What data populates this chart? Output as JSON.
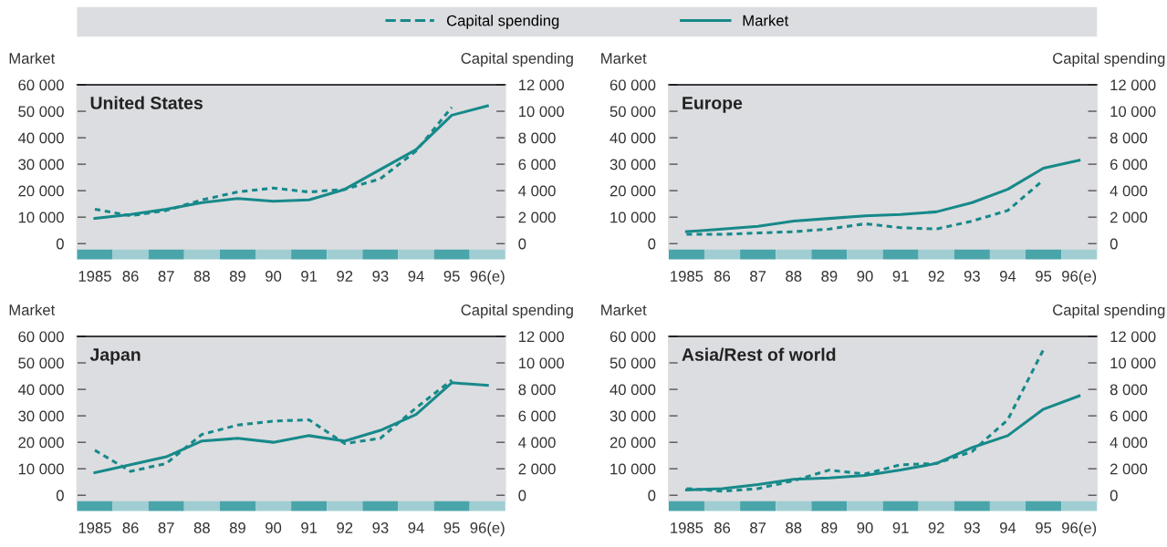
{
  "chart_data": [
    {
      "type": "line",
      "title": "United States",
      "ylabel": "Market",
      "y2label": "Capital spending",
      "legend": "top",
      "grid": false,
      "marker": "none",
      "categories": [
        "1985",
        "86",
        "87",
        "88",
        "89",
        "90",
        "91",
        "92",
        "93",
        "94",
        "95",
        "96(e)"
      ],
      "ylim": [
        -2000,
        60000
      ],
      "yticks": [
        {
          "value": 0,
          "label": "0"
        },
        {
          "value": 10000,
          "label": "10 000"
        },
        {
          "value": 20000,
          "label": "20 000"
        },
        {
          "value": 30000,
          "label": "30 000"
        },
        {
          "value": 40000,
          "label": "40 000"
        },
        {
          "value": 50000,
          "label": "50 000"
        },
        {
          "value": 60000,
          "label": "60 000"
        }
      ],
      "y2lim": [
        -400,
        12000
      ],
      "y2ticks": [
        {
          "value": 0,
          "label": "0"
        },
        {
          "value": 2000,
          "label": "2 000"
        },
        {
          "value": 4000,
          "label": "4 000"
        },
        {
          "value": 6000,
          "label": "6 000"
        },
        {
          "value": 8000,
          "label": "8 000"
        },
        {
          "value": 10000,
          "label": "10 000"
        },
        {
          "value": 12000,
          "label": "12 000"
        }
      ],
      "series": [
        {
          "name": "Capital spending",
          "color": "#17898a",
          "axis": "y2",
          "line_style": "dotted",
          "values": [
            2600,
            2100,
            2500,
            3300,
            3900,
            4200,
            3900,
            4100,
            4900,
            7000,
            10300,
            null
          ]
        },
        {
          "name": "Market",
          "color": "#17898a",
          "line_style": "solid",
          "values": [
            9500,
            11000,
            13000,
            15500,
            17000,
            16000,
            16500,
            20500,
            28000,
            35500,
            48500,
            52000
          ]
        }
      ]
    },
    {
      "type": "line",
      "title": "Europe",
      "ylabel": "Market",
      "y2label": "Capital spending",
      "grid": false,
      "marker": "none",
      "categories": [
        "1985",
        "86",
        "87",
        "88",
        "89",
        "90",
        "91",
        "92",
        "93",
        "94",
        "95",
        "96(e)"
      ],
      "ylim": [
        -2000,
        60000
      ],
      "yticks": [
        {
          "value": 0,
          "label": "0"
        },
        {
          "value": 10000,
          "label": "10 000"
        },
        {
          "value": 20000,
          "label": "20 000"
        },
        {
          "value": 30000,
          "label": "30 000"
        },
        {
          "value": 40000,
          "label": "40 000"
        },
        {
          "value": 50000,
          "label": "50 000"
        },
        {
          "value": 60000,
          "label": "60 000"
        }
      ],
      "y2lim": [
        -400,
        12000
      ],
      "y2ticks": [
        {
          "value": 0,
          "label": "0"
        },
        {
          "value": 2000,
          "label": "2 000"
        },
        {
          "value": 4000,
          "label": "4 000"
        },
        {
          "value": 6000,
          "label": "6 000"
        },
        {
          "value": 8000,
          "label": "8 000"
        },
        {
          "value": 10000,
          "label": "10 000"
        },
        {
          "value": 12000,
          "label": "12 000"
        }
      ],
      "series": [
        {
          "color": "#17898a",
          "axis": "y2",
          "line_style": "dotted",
          "values": [
            700,
            700,
            800,
            900,
            1100,
            1500,
            1200,
            1100,
            1700,
            2500,
            4800,
            null
          ]
        },
        {
          "color": "#17898a",
          "line_style": "solid",
          "values": [
            4500,
            5500,
            6500,
            8500,
            9500,
            10500,
            11000,
            12000,
            15500,
            20500,
            28500,
            31500
          ]
        }
      ]
    },
    {
      "type": "line",
      "title": "Japan",
      "ylabel": "Market",
      "y2label": "Capital spending",
      "grid": false,
      "marker": "none",
      "categories": [
        "1985",
        "86",
        "87",
        "88",
        "89",
        "90",
        "91",
        "92",
        "93",
        "94",
        "95",
        "96(e)"
      ],
      "ylim": [
        -2000,
        60000
      ],
      "yticks": [
        {
          "value": 0,
          "label": "0"
        },
        {
          "value": 10000,
          "label": "10 000"
        },
        {
          "value": 20000,
          "label": "20 000"
        },
        {
          "value": 30000,
          "label": "30 000"
        },
        {
          "value": 40000,
          "label": "40 000"
        },
        {
          "value": 50000,
          "label": "50 000"
        },
        {
          "value": 60000,
          "label": "60 000"
        }
      ],
      "y2lim": [
        -400,
        12000
      ],
      "y2ticks": [
        {
          "value": 0,
          "label": "0"
        },
        {
          "value": 2000,
          "label": "2 000"
        },
        {
          "value": 4000,
          "label": "4 000"
        },
        {
          "value": 6000,
          "label": "6 000"
        },
        {
          "value": 8000,
          "label": "8 000"
        },
        {
          "value": 10000,
          "label": "10 000"
        },
        {
          "value": 12000,
          "label": "12 000"
        }
      ],
      "series": [
        {
          "color": "#17898a",
          "axis": "y2",
          "line_style": "dotted",
          "values": [
            3400,
            1800,
            2400,
            4600,
            5300,
            5600,
            5700,
            3900,
            4300,
            6600,
            8700,
            null
          ]
        },
        {
          "color": "#17898a",
          "line_style": "solid",
          "values": [
            8500,
            11500,
            14500,
            20500,
            21500,
            20000,
            22500,
            20500,
            24500,
            30500,
            42500,
            41500
          ]
        }
      ]
    },
    {
      "type": "line",
      "title": "Asia/Rest of world",
      "ylabel": "Market",
      "y2label": "Capital spending",
      "grid": false,
      "marker": "none",
      "categories": [
        "1985",
        "86",
        "87",
        "88",
        "89",
        "90",
        "91",
        "92",
        "93",
        "94",
        "95",
        "96(e)"
      ],
      "ylim": [
        -2000,
        60000
      ],
      "yticks": [
        {
          "value": 0,
          "label": "0"
        },
        {
          "value": 10000,
          "label": "10 000"
        },
        {
          "value": 20000,
          "label": "20 000"
        },
        {
          "value": 30000,
          "label": "30 000"
        },
        {
          "value": 40000,
          "label": "40 000"
        },
        {
          "value": 50000,
          "label": "50 000"
        },
        {
          "value": 60000,
          "label": "60 000"
        }
      ],
      "y2lim": [
        -400,
        12000
      ],
      "y2ticks": [
        {
          "value": 0,
          "label": "0"
        },
        {
          "value": 2000,
          "label": "2 000"
        },
        {
          "value": 4000,
          "label": "4 000"
        },
        {
          "value": 6000,
          "label": "6 000"
        },
        {
          "value": 8000,
          "label": "8 000"
        },
        {
          "value": 10000,
          "label": "10 000"
        },
        {
          "value": 12000,
          "label": "12 000"
        }
      ],
      "series": [
        {
          "color": "#17898a",
          "axis": "y2",
          "line_style": "dotted",
          "values": [
            500,
            300,
            500,
            1100,
            1900,
            1600,
            2300,
            2400,
            3300,
            5700,
            11000,
            null
          ]
        },
        {
          "color": "#17898a",
          "line_style": "solid",
          "values": [
            2000,
            2500,
            4000,
            6000,
            6500,
            7500,
            9500,
            12000,
            18000,
            22500,
            32500,
            37500
          ]
        }
      ]
    }
  ]
}
